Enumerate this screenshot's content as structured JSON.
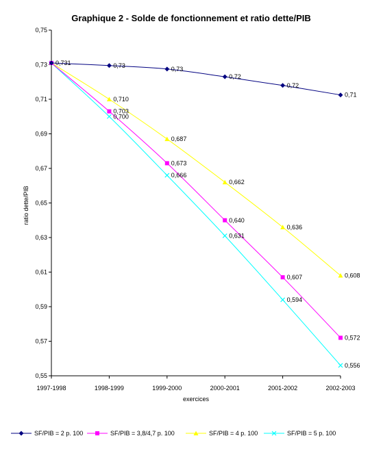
{
  "chart_data": {
    "type": "line",
    "title": "Graphique 2 - Solde de fonctionnement et ratio dette/PIB",
    "xlabel": "exercices",
    "ylabel": "ratio dette/PIB",
    "categories": [
      "1997-1998",
      "1998-1999",
      "1999-2000",
      "2000-2001",
      "2001-2002",
      "2002-2003"
    ],
    "ylim": [
      0.55,
      0.75
    ],
    "yticks": [
      "0,55",
      "0,57",
      "0,59",
      "0,61",
      "0,63",
      "0,65",
      "0,67",
      "0,69",
      "0,71",
      "0,73",
      "0,75"
    ],
    "ytick_values": [
      0.55,
      0.57,
      0.59,
      0.61,
      0.63,
      0.65,
      0.67,
      0.69,
      0.71,
      0.73,
      0.75
    ],
    "grid": false,
    "legend_position": "bottom",
    "series": [
      {
        "name": "SF/PIB = 2 p. 100",
        "color": "#000080",
        "marker": "diamond",
        "values": [
          0.731,
          0.7295,
          0.7275,
          0.723,
          0.718,
          0.7125
        ],
        "labels": [
          "0,731",
          "0,73",
          "0,73",
          "0,72",
          "0,72",
          "0,71"
        ],
        "label_points": [
          0,
          1,
          2,
          3,
          4,
          5
        ]
      },
      {
        "name": "SF/PIB = 3,8/4,7 p. 100",
        "color": "#FF00FF",
        "marker": "square",
        "values": [
          0.731,
          0.703,
          0.673,
          0.64,
          0.607,
          0.572
        ],
        "labels": [
          "",
          "0,703",
          "0,673",
          "0,640",
          "0,607",
          "0,572"
        ],
        "label_points": [
          1,
          2,
          3,
          4,
          5
        ]
      },
      {
        "name": "SF/PIB = 4 p. 100",
        "color": "#FFFF00",
        "marker": "triangle",
        "values": [
          0.731,
          0.71,
          0.687,
          0.662,
          0.636,
          0.608
        ],
        "labels": [
          "",
          "0,710",
          "0,687",
          "0,662",
          "0,636",
          "0,608"
        ],
        "label_points": [
          1,
          2,
          3,
          4,
          5
        ]
      },
      {
        "name": "SF/PIB = 5 p. 100",
        "color": "#00FFFF",
        "marker": "x",
        "values": [
          0.731,
          0.7,
          0.666,
          0.631,
          0.594,
          0.556
        ],
        "labels": [
          "",
          "0,700",
          "0,666",
          "0,631",
          "0,594",
          "0,556"
        ],
        "label_points": [
          1,
          2,
          3,
          4,
          5
        ]
      }
    ]
  }
}
